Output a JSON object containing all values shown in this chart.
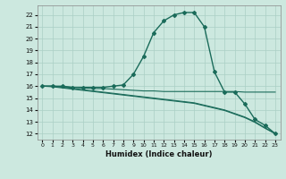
{
  "xlabel": "Humidex (Indice chaleur)",
  "xlim": [
    -0.5,
    23.5
  ],
  "ylim": [
    11.5,
    22.8
  ],
  "xticks": [
    0,
    1,
    2,
    3,
    4,
    5,
    6,
    7,
    8,
    9,
    10,
    11,
    12,
    13,
    14,
    15,
    16,
    17,
    18,
    19,
    20,
    21,
    22,
    23
  ],
  "yticks": [
    12,
    13,
    14,
    15,
    16,
    17,
    18,
    19,
    20,
    21,
    22
  ],
  "bg_color": "#cce8df",
  "line_color": "#1a6b5a",
  "grid_color": "#aacfc5",
  "lines": [
    {
      "x": [
        0,
        1,
        2,
        3,
        4,
        5,
        6,
        7,
        8,
        9,
        10,
        11,
        12,
        13,
        14,
        15,
        16,
        17,
        18,
        19,
        20,
        21,
        22,
        23
      ],
      "y": [
        16,
        16,
        16,
        15.9,
        15.9,
        15.9,
        15.9,
        16.0,
        16.1,
        17.0,
        18.5,
        20.5,
        21.5,
        22.0,
        22.2,
        22.2,
        21.0,
        17.2,
        15.5,
        15.5,
        14.5,
        13.2,
        12.7,
        12.0
      ],
      "marker": true,
      "lw": 1.0
    },
    {
      "x": [
        0,
        1,
        2,
        3,
        4,
        5,
        6,
        7,
        8,
        9,
        10,
        11,
        12,
        13,
        14,
        15,
        16,
        17,
        18,
        19,
        20,
        21,
        22,
        23
      ],
      "y": [
        16,
        16,
        15.95,
        15.9,
        15.85,
        15.8,
        15.8,
        15.75,
        15.7,
        15.65,
        15.6,
        15.6,
        15.55,
        15.55,
        15.55,
        15.55,
        15.55,
        15.55,
        15.55,
        15.55,
        15.5,
        15.5,
        15.5,
        15.5
      ],
      "marker": false,
      "lw": 0.8
    },
    {
      "x": [
        0,
        1,
        2,
        3,
        4,
        5,
        6,
        7,
        8,
        9,
        10,
        11,
        12,
        13,
        14,
        15,
        16,
        17,
        18,
        19,
        20,
        21,
        22,
        23
      ],
      "y": [
        16,
        16,
        15.9,
        15.8,
        15.7,
        15.6,
        15.5,
        15.4,
        15.3,
        15.2,
        15.1,
        15.0,
        14.9,
        14.8,
        14.7,
        14.6,
        14.4,
        14.2,
        14.0,
        13.7,
        13.4,
        13.0,
        12.5,
        12.0
      ],
      "marker": false,
      "lw": 0.8
    },
    {
      "x": [
        0,
        1,
        2,
        3,
        4,
        5,
        6,
        7,
        8,
        9,
        10,
        11,
        12,
        13,
        14,
        15,
        16,
        17,
        18,
        19,
        20,
        21,
        22,
        23
      ],
      "y": [
        16,
        15.95,
        15.85,
        15.75,
        15.65,
        15.55,
        15.45,
        15.35,
        15.25,
        15.15,
        15.05,
        14.95,
        14.85,
        14.75,
        14.65,
        14.55,
        14.35,
        14.15,
        13.95,
        13.65,
        13.35,
        12.95,
        12.45,
        12.0
      ],
      "marker": false,
      "lw": 0.8
    }
  ]
}
